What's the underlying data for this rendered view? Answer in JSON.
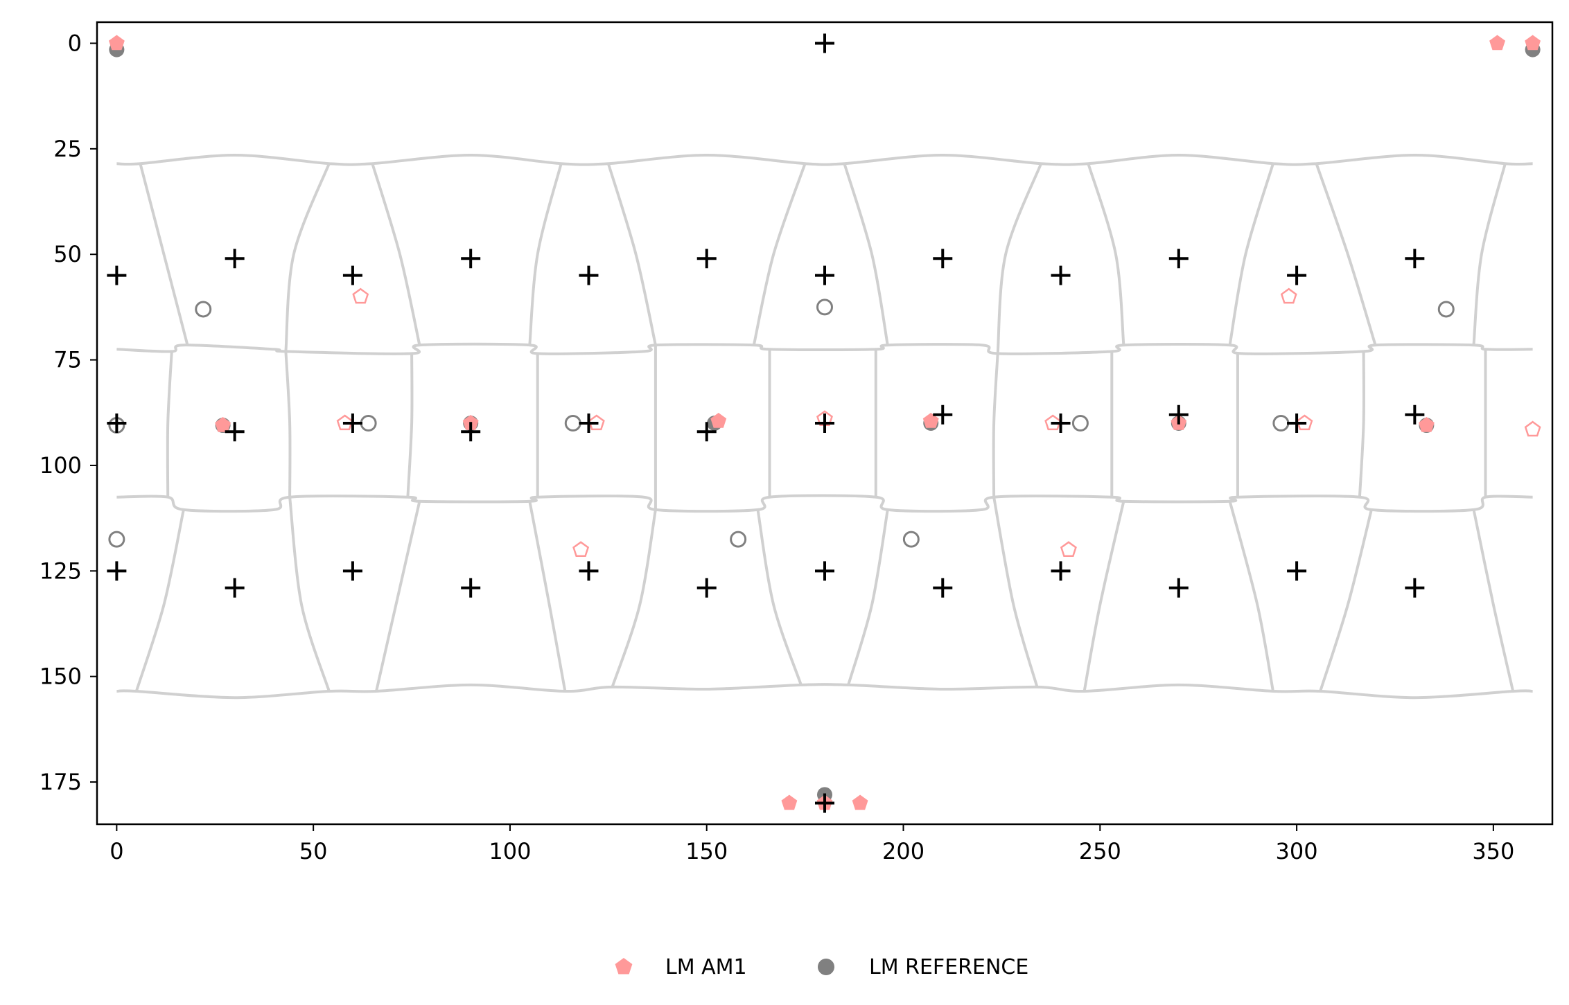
{
  "chart_data": {
    "type": "scatter",
    "title": "",
    "xlabel": "",
    "ylabel": "",
    "xlim": [
      -5,
      365
    ],
    "ylim": [
      185,
      -5
    ],
    "y_axis_inverted": true,
    "grid": false,
    "legend_position": "bottom-center",
    "x_ticks": [
      0,
      50,
      100,
      150,
      200,
      250,
      300,
      350
    ],
    "y_ticks": [
      0,
      25,
      50,
      75,
      100,
      125,
      150,
      175
    ],
    "colors": {
      "am1": "#ff9999",
      "reference": "#808080",
      "grid_points": "#000000",
      "mesh": "#d0d0d0"
    },
    "legend": [
      {
        "label": "LM AM1",
        "marker": "pentagon",
        "color": "#ff9999"
      },
      {
        "label": "LM REFERENCE",
        "marker": "circle",
        "color": "#808080"
      }
    ],
    "series": [
      {
        "name": "LM AM1",
        "marker": "pentagon",
        "color": "#ff9999",
        "filled_points": [
          [
            0,
            0
          ],
          [
            351,
            0
          ],
          [
            360,
            0
          ],
          [
            27,
            90.5
          ],
          [
            90,
            90
          ],
          [
            153,
            89.5
          ],
          [
            207,
            89.5
          ],
          [
            270,
            90
          ],
          [
            333,
            90.5
          ],
          [
            171,
            180
          ],
          [
            180,
            180
          ],
          [
            189,
            180
          ]
        ],
        "hollow_points": [
          [
            62,
            60
          ],
          [
            298,
            60
          ],
          [
            58,
            90
          ],
          [
            122,
            90
          ],
          [
            180,
            89
          ],
          [
            238,
            90
          ],
          [
            302,
            90
          ],
          [
            360,
            91.5
          ],
          [
            118,
            120
          ],
          [
            242,
            120
          ]
        ]
      },
      {
        "name": "LM REFERENCE",
        "marker": "circle",
        "color": "#808080",
        "filled_points": [
          [
            0,
            1.5
          ],
          [
            360,
            1.5
          ],
          [
            27,
            90.5
          ],
          [
            90,
            90
          ],
          [
            152,
            90
          ],
          [
            207,
            90
          ],
          [
            270,
            90
          ],
          [
            333,
            90.5
          ],
          [
            180,
            178
          ]
        ],
        "hollow_points": [
          [
            22,
            63
          ],
          [
            180,
            62.5
          ],
          [
            338,
            63
          ],
          [
            0,
            90.5
          ],
          [
            64,
            90
          ],
          [
            116,
            90
          ],
          [
            245,
            90
          ],
          [
            296,
            90
          ],
          [
            0,
            117.5
          ],
          [
            158,
            117.5
          ],
          [
            202,
            117.5
          ]
        ]
      },
      {
        "marker": "plus",
        "color": "#000000",
        "points": [
          [
            180,
            0
          ],
          [
            0,
            55
          ],
          [
            30,
            51
          ],
          [
            60,
            55
          ],
          [
            90,
            51
          ],
          [
            120,
            55
          ],
          [
            150,
            51
          ],
          [
            180,
            55
          ],
          [
            210,
            51
          ],
          [
            240,
            55
          ],
          [
            270,
            51
          ],
          [
            300,
            55
          ],
          [
            330,
            51
          ],
          [
            0,
            90
          ],
          [
            30,
            92
          ],
          [
            60,
            90
          ],
          [
            90,
            92
          ],
          [
            120,
            90
          ],
          [
            150,
            92
          ],
          [
            180,
            90
          ],
          [
            210,
            88
          ],
          [
            240,
            90
          ],
          [
            270,
            88
          ],
          [
            300,
            90
          ],
          [
            330,
            88
          ],
          [
            0,
            125
          ],
          [
            30,
            129
          ],
          [
            60,
            125
          ],
          [
            90,
            129
          ],
          [
            120,
            125
          ],
          [
            150,
            129
          ],
          [
            180,
            125
          ],
          [
            210,
            129
          ],
          [
            240,
            125
          ],
          [
            270,
            129
          ],
          [
            300,
            125
          ],
          [
            330,
            129
          ],
          [
            180,
            180
          ]
        ]
      }
    ],
    "mesh": {
      "color": "#d0d0d0",
      "curves": [
        [
          [
            0,
            28.5
          ],
          [
            6,
            28.5
          ],
          [
            30,
            26.5
          ],
          [
            54,
            28.5
          ],
          [
            65,
            28.5
          ],
          [
            90,
            26.5
          ],
          [
            113,
            28.5
          ],
          [
            125,
            28.5
          ],
          [
            150,
            26.5
          ],
          [
            175,
            28.5
          ],
          [
            185,
            28.5
          ],
          [
            210,
            26.5
          ],
          [
            235,
            28.5
          ],
          [
            247,
            28.5
          ],
          [
            270,
            26.5
          ],
          [
            294,
            28.5
          ],
          [
            305,
            28.5
          ],
          [
            330,
            26.5
          ],
          [
            353,
            28.5
          ],
          [
            360,
            28.5
          ]
        ],
        [
          [
            0,
            153.5
          ],
          [
            5,
            153.5
          ],
          [
            30,
            155
          ],
          [
            54,
            153.5
          ],
          [
            66,
            153.5
          ],
          [
            90,
            152
          ],
          [
            114,
            153.5
          ],
          [
            126,
            152.5
          ],
          [
            150,
            153
          ],
          [
            174,
            152
          ],
          [
            186,
            152
          ],
          [
            210,
            153
          ],
          [
            234,
            152.5
          ],
          [
            246,
            153.5
          ],
          [
            270,
            152
          ],
          [
            294,
            153.5
          ],
          [
            306,
            153.5
          ],
          [
            330,
            155
          ],
          [
            355,
            153.5
          ],
          [
            360,
            153.5
          ]
        ],
        [
          [
            0,
            72.5
          ],
          [
            14,
            73
          ],
          [
            17,
            71.5
          ],
          [
            40,
            72.5
          ],
          [
            43,
            73
          ],
          [
            75,
            73.5
          ],
          [
            77,
            71.5
          ],
          [
            105,
            71.5
          ],
          [
            107,
            73.5
          ],
          [
            134,
            73
          ],
          [
            137,
            71.5
          ],
          [
            162,
            71.5
          ],
          [
            166,
            72.5
          ],
          [
            193,
            72.5
          ],
          [
            196,
            71.5
          ],
          [
            220,
            71.5
          ],
          [
            224,
            73.5
          ],
          [
            253,
            73
          ],
          [
            256,
            71.5
          ],
          [
            283,
            71.5
          ],
          [
            286,
            73.5
          ],
          [
            317,
            73
          ],
          [
            320,
            71.5
          ],
          [
            345,
            71.5
          ],
          [
            348,
            72.5
          ],
          [
            360,
            72.5
          ]
        ],
        [
          [
            0,
            107.5
          ],
          [
            13,
            107.5
          ],
          [
            17,
            110.5
          ],
          [
            40,
            110.5
          ],
          [
            44,
            107.5
          ],
          [
            74,
            107.5
          ],
          [
            77,
            108.5
          ],
          [
            105,
            108.5
          ],
          [
            107,
            107.5
          ],
          [
            134,
            107.5
          ],
          [
            137,
            110.5
          ],
          [
            163,
            110.5
          ],
          [
            166,
            107.5
          ],
          [
            193,
            107.5
          ],
          [
            196,
            110.5
          ],
          [
            220,
            110.5
          ],
          [
            223,
            107.5
          ],
          [
            253,
            107.5
          ],
          [
            256,
            108.5
          ],
          [
            283,
            108.5
          ],
          [
            285,
            107.5
          ],
          [
            316,
            107.5
          ],
          [
            319,
            110.5
          ],
          [
            345,
            110.5
          ],
          [
            348,
            107.5
          ],
          [
            360,
            107.5
          ]
        ],
        [
          [
            6,
            28.5
          ],
          [
            12,
            50
          ],
          [
            18,
            71.5
          ]
        ],
        [
          [
            54,
            28.5
          ],
          [
            45,
            50
          ],
          [
            43,
            73
          ]
        ],
        [
          [
            65,
            28.5
          ],
          [
            72,
            50
          ],
          [
            77,
            71.5
          ]
        ],
        [
          [
            113,
            28.5
          ],
          [
            107,
            50
          ],
          [
            105,
            71.5
          ]
        ],
        [
          [
            125,
            28.5
          ],
          [
            132,
            50
          ],
          [
            137,
            71.5
          ]
        ],
        [
          [
            175,
            28.5
          ],
          [
            167,
            50
          ],
          [
            162,
            71.5
          ]
        ],
        [
          [
            185,
            28.5
          ],
          [
            192,
            50
          ],
          [
            196,
            71.5
          ]
        ],
        [
          [
            235,
            28.5
          ],
          [
            226,
            50
          ],
          [
            224,
            73.5
          ]
        ],
        [
          [
            247,
            28.5
          ],
          [
            254,
            50
          ],
          [
            256,
            71.5
          ]
        ],
        [
          [
            294,
            28.5
          ],
          [
            287,
            50
          ],
          [
            283,
            71.5
          ]
        ],
        [
          [
            305,
            28.5
          ],
          [
            313,
            50
          ],
          [
            320,
            71.5
          ]
        ],
        [
          [
            353,
            28.5
          ],
          [
            347,
            50
          ],
          [
            345,
            71.5
          ]
        ],
        [
          [
            14,
            73
          ],
          [
            13,
            90
          ],
          [
            13,
            107.5
          ]
        ],
        [
          [
            43,
            73
          ],
          [
            44,
            90
          ],
          [
            44,
            107.5
          ]
        ],
        [
          [
            75,
            73.5
          ],
          [
            75,
            90
          ],
          [
            74,
            107.5
          ]
        ],
        [
          [
            107,
            73.5
          ],
          [
            107,
            90
          ],
          [
            107,
            107.5
          ]
        ],
        [
          [
            137,
            71.5
          ],
          [
            137,
            90
          ],
          [
            137,
            110.5
          ]
        ],
        [
          [
            166,
            72.5
          ],
          [
            166,
            90
          ],
          [
            166,
            107.5
          ]
        ],
        [
          [
            193,
            72.5
          ],
          [
            193,
            90
          ],
          [
            193,
            107.5
          ]
        ],
        [
          [
            224,
            73.5
          ],
          [
            223,
            90
          ],
          [
            223,
            107.5
          ]
        ],
        [
          [
            253,
            73
          ],
          [
            253,
            90
          ],
          [
            253,
            107.5
          ]
        ],
        [
          [
            285,
            73.5
          ],
          [
            285,
            90
          ],
          [
            285,
            107.5
          ]
        ],
        [
          [
            317,
            73
          ],
          [
            317,
            90
          ],
          [
            316,
            107.5
          ]
        ],
        [
          [
            348,
            72.5
          ],
          [
            348,
            90
          ],
          [
            348,
            107.5
          ]
        ],
        [
          [
            17,
            110.5
          ],
          [
            12,
            133
          ],
          [
            5,
            153.5
          ]
        ],
        [
          [
            44,
            107.5
          ],
          [
            47,
            133
          ],
          [
            54,
            153.5
          ]
        ],
        [
          [
            77,
            108.5
          ],
          [
            71,
            133
          ],
          [
            66,
            153.5
          ]
        ],
        [
          [
            105,
            108.5
          ],
          [
            110,
            133
          ],
          [
            114,
            153.5
          ]
        ],
        [
          [
            137,
            110.5
          ],
          [
            133,
            133
          ],
          [
            126,
            152.5
          ]
        ],
        [
          [
            163,
            110.5
          ],
          [
            167,
            133
          ],
          [
            174,
            152
          ]
        ],
        [
          [
            196,
            110.5
          ],
          [
            192,
            133
          ],
          [
            186,
            152
          ]
        ],
        [
          [
            223,
            107.5
          ],
          [
            228,
            133
          ],
          [
            234,
            152.5
          ]
        ],
        [
          [
            256,
            108.5
          ],
          [
            250,
            133
          ],
          [
            246,
            153.5
          ]
        ],
        [
          [
            283,
            108.5
          ],
          [
            290,
            133
          ],
          [
            294,
            153.5
          ]
        ],
        [
          [
            319,
            110.5
          ],
          [
            313,
            133
          ],
          [
            306,
            153.5
          ]
        ],
        [
          [
            345,
            110.5
          ],
          [
            350,
            133
          ],
          [
            355,
            153.5
          ]
        ]
      ]
    }
  }
}
